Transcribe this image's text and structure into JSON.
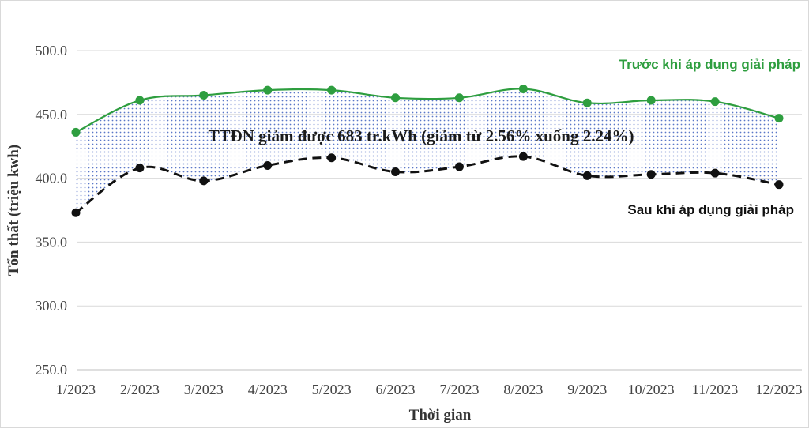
{
  "chart_data": {
    "type": "line",
    "categories": [
      "1/2023",
      "2/2023",
      "3/2023",
      "4/2023",
      "5/2023",
      "6/2023",
      "7/2023",
      "8/2023",
      "9/2023",
      "10/2023",
      "11/2023",
      "12/2023"
    ],
    "series": [
      {
        "name": "Trước khi áp dụng giải pháp",
        "color": "#2e9e3f",
        "style": "solid",
        "values": [
          436,
          461,
          465,
          469,
          469,
          463,
          463,
          470,
          459,
          461,
          460,
          447
        ]
      },
      {
        "name": "Sau khi áp dụng giải pháp",
        "color": "#111111",
        "style": "dashed",
        "values": [
          373,
          408,
          398,
          410,
          416,
          405,
          409,
          417,
          402,
          403,
          404,
          395
        ]
      }
    ],
    "xlabel": "Thời gian",
    "ylabel": "Tổn thất (triệu kwh)",
    "ylim": [
      250,
      500
    ],
    "yticks": [
      "250.0",
      "300.0",
      "350.0",
      "400.0",
      "450.0",
      "500.0"
    ],
    "grid": "horizontal",
    "annotation": "TTĐN giảm được 683 tr.kWh (giảm từ 2.56% xuống 2.24%)",
    "fill_between": {
      "color": "#5a78c8",
      "pattern": "dotted"
    }
  }
}
